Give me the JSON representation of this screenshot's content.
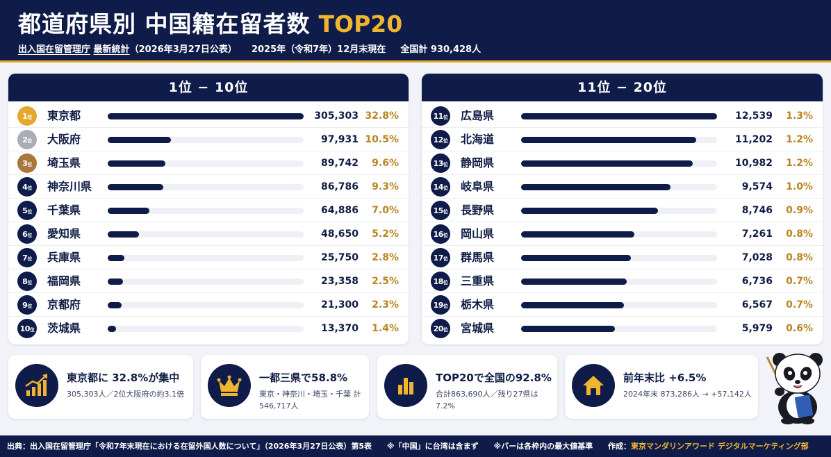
{
  "header": {
    "title": "都道府県別 中国籍在留者数",
    "title_accent": "TOP20",
    "subtitle_source": "出入国在留管理庁",
    "subtitle_stats": "最新統計",
    "subtitle_date": "（2026年3月27日公表）",
    "subtitle_period": "2025年（令和7年）12月末現在",
    "subtitle_total": "全国計 930,428人"
  },
  "chart_data": [
    {
      "type": "bar",
      "title": "1位 − 10位",
      "items": [
        {
          "rank": "1",
          "rank_suffix": "位",
          "prefecture": "東京都",
          "value": 305303,
          "value_label": "305,303",
          "pct": "32.8%",
          "badge_color": "#e3a82c"
        },
        {
          "rank": "2",
          "rank_suffix": "位",
          "prefecture": "大阪府",
          "value": 97931,
          "value_label": "97,931",
          "pct": "10.5%",
          "badge_color": "#a9adb6"
        },
        {
          "rank": "3",
          "rank_suffix": "位",
          "prefecture": "埼玉県",
          "value": 89742,
          "value_label": "89,742",
          "pct": "9.6%",
          "badge_color": "#a8773a"
        },
        {
          "rank": "4",
          "rank_suffix": "位",
          "prefecture": "神奈川県",
          "value": 86786,
          "value_label": "86,786",
          "pct": "9.3%",
          "badge_color": "#0f1b48"
        },
        {
          "rank": "5",
          "rank_suffix": "位",
          "prefecture": "千葉県",
          "value": 64886,
          "value_label": "64,886",
          "pct": "7.0%",
          "badge_color": "#0f1b48"
        },
        {
          "rank": "6",
          "rank_suffix": "位",
          "prefecture": "愛知県",
          "value": 48650,
          "value_label": "48,650",
          "pct": "5.2%",
          "badge_color": "#0f1b48"
        },
        {
          "rank": "7",
          "rank_suffix": "位",
          "prefecture": "兵庫県",
          "value": 25750,
          "value_label": "25,750",
          "pct": "2.8%",
          "badge_color": "#0f1b48"
        },
        {
          "rank": "8",
          "rank_suffix": "位",
          "prefecture": "福岡県",
          "value": 23358,
          "value_label": "23,358",
          "pct": "2.5%",
          "badge_color": "#0f1b48"
        },
        {
          "rank": "9",
          "rank_suffix": "位",
          "prefecture": "京都府",
          "value": 21300,
          "value_label": "21,300",
          "pct": "2.3%",
          "badge_color": "#0f1b48"
        },
        {
          "rank": "10",
          "rank_suffix": "位",
          "prefecture": "茨城県",
          "value": 13370,
          "value_label": "13,370",
          "pct": "1.4%",
          "badge_color": "#0f1b48"
        }
      ]
    },
    {
      "type": "bar",
      "title": "11位 − 20位",
      "items": [
        {
          "rank": "11",
          "rank_suffix": "位",
          "prefecture": "広島県",
          "value": 12539,
          "value_label": "12,539",
          "pct": "1.3%",
          "badge_color": "#0f1b48"
        },
        {
          "rank": "12",
          "rank_suffix": "位",
          "prefecture": "北海道",
          "value": 11202,
          "value_label": "11,202",
          "pct": "1.2%",
          "badge_color": "#0f1b48"
        },
        {
          "rank": "13",
          "rank_suffix": "位",
          "prefecture": "静岡県",
          "value": 10982,
          "value_label": "10,982",
          "pct": "1.2%",
          "badge_color": "#0f1b48"
        },
        {
          "rank": "14",
          "rank_suffix": "位",
          "prefecture": "岐阜県",
          "value": 9574,
          "value_label": "9,574",
          "pct": "1.0%",
          "badge_color": "#0f1b48"
        },
        {
          "rank": "15",
          "rank_suffix": "位",
          "prefecture": "長野県",
          "value": 8746,
          "value_label": "8,746",
          "pct": "0.9%",
          "badge_color": "#0f1b48"
        },
        {
          "rank": "16",
          "rank_suffix": "位",
          "prefecture": "岡山県",
          "value": 7261,
          "value_label": "7,261",
          "pct": "0.8%",
          "badge_color": "#0f1b48"
        },
        {
          "rank": "17",
          "rank_suffix": "位",
          "prefecture": "群馬県",
          "value": 7028,
          "value_label": "7,028",
          "pct": "0.8%",
          "badge_color": "#0f1b48"
        },
        {
          "rank": "18",
          "rank_suffix": "位",
          "prefecture": "三重県",
          "value": 6736,
          "value_label": "6,736",
          "pct": "0.7%",
          "badge_color": "#0f1b48"
        },
        {
          "rank": "19",
          "rank_suffix": "位",
          "prefecture": "栃木県",
          "value": 6567,
          "value_label": "6,567",
          "pct": "0.7%",
          "badge_color": "#0f1b48"
        },
        {
          "rank": "20",
          "rank_suffix": "位",
          "prefecture": "宮城県",
          "value": 5979,
          "value_label": "5,979",
          "pct": "0.6%",
          "badge_color": "#0f1b48"
        }
      ]
    }
  ],
  "cards": [
    {
      "icon": "growth-chart-icon",
      "title": "東京都に 32.8%が集中",
      "sub": "305,303人／2位大阪府の約3.1倍"
    },
    {
      "icon": "crown-icon",
      "title": "一都三県で58.8%",
      "sub": "東京・神奈川・埼玉・千葉 計546,717人"
    },
    {
      "icon": "bar-chart-icon",
      "title": "TOP20で全国の92.8%",
      "sub": "合計863,690人／残り27県は7.2%"
    },
    {
      "icon": "house-icon",
      "title": "前年末比 +6.5%",
      "sub": "2024年末 873,286人 → +57,142人"
    }
  ],
  "footer": {
    "source": "出典：出入国在留管理庁「令和7年末現在における在留外国人数について」（2026年3月27日公表）第5表",
    "note1": "※「中国」に台湾は含まず",
    "note2": "※バーは各枠内の最大値基準",
    "author_label": "作成：",
    "author": "東京マンダリンアワード デジタルマーケティング部"
  },
  "mascot": {
    "icon": "panda-mascot-icon"
  },
  "colors": {
    "navy": "#0f1b48",
    "gold": "#e0a92b",
    "pct": "#b88422",
    "track": "#eef0f5"
  }
}
